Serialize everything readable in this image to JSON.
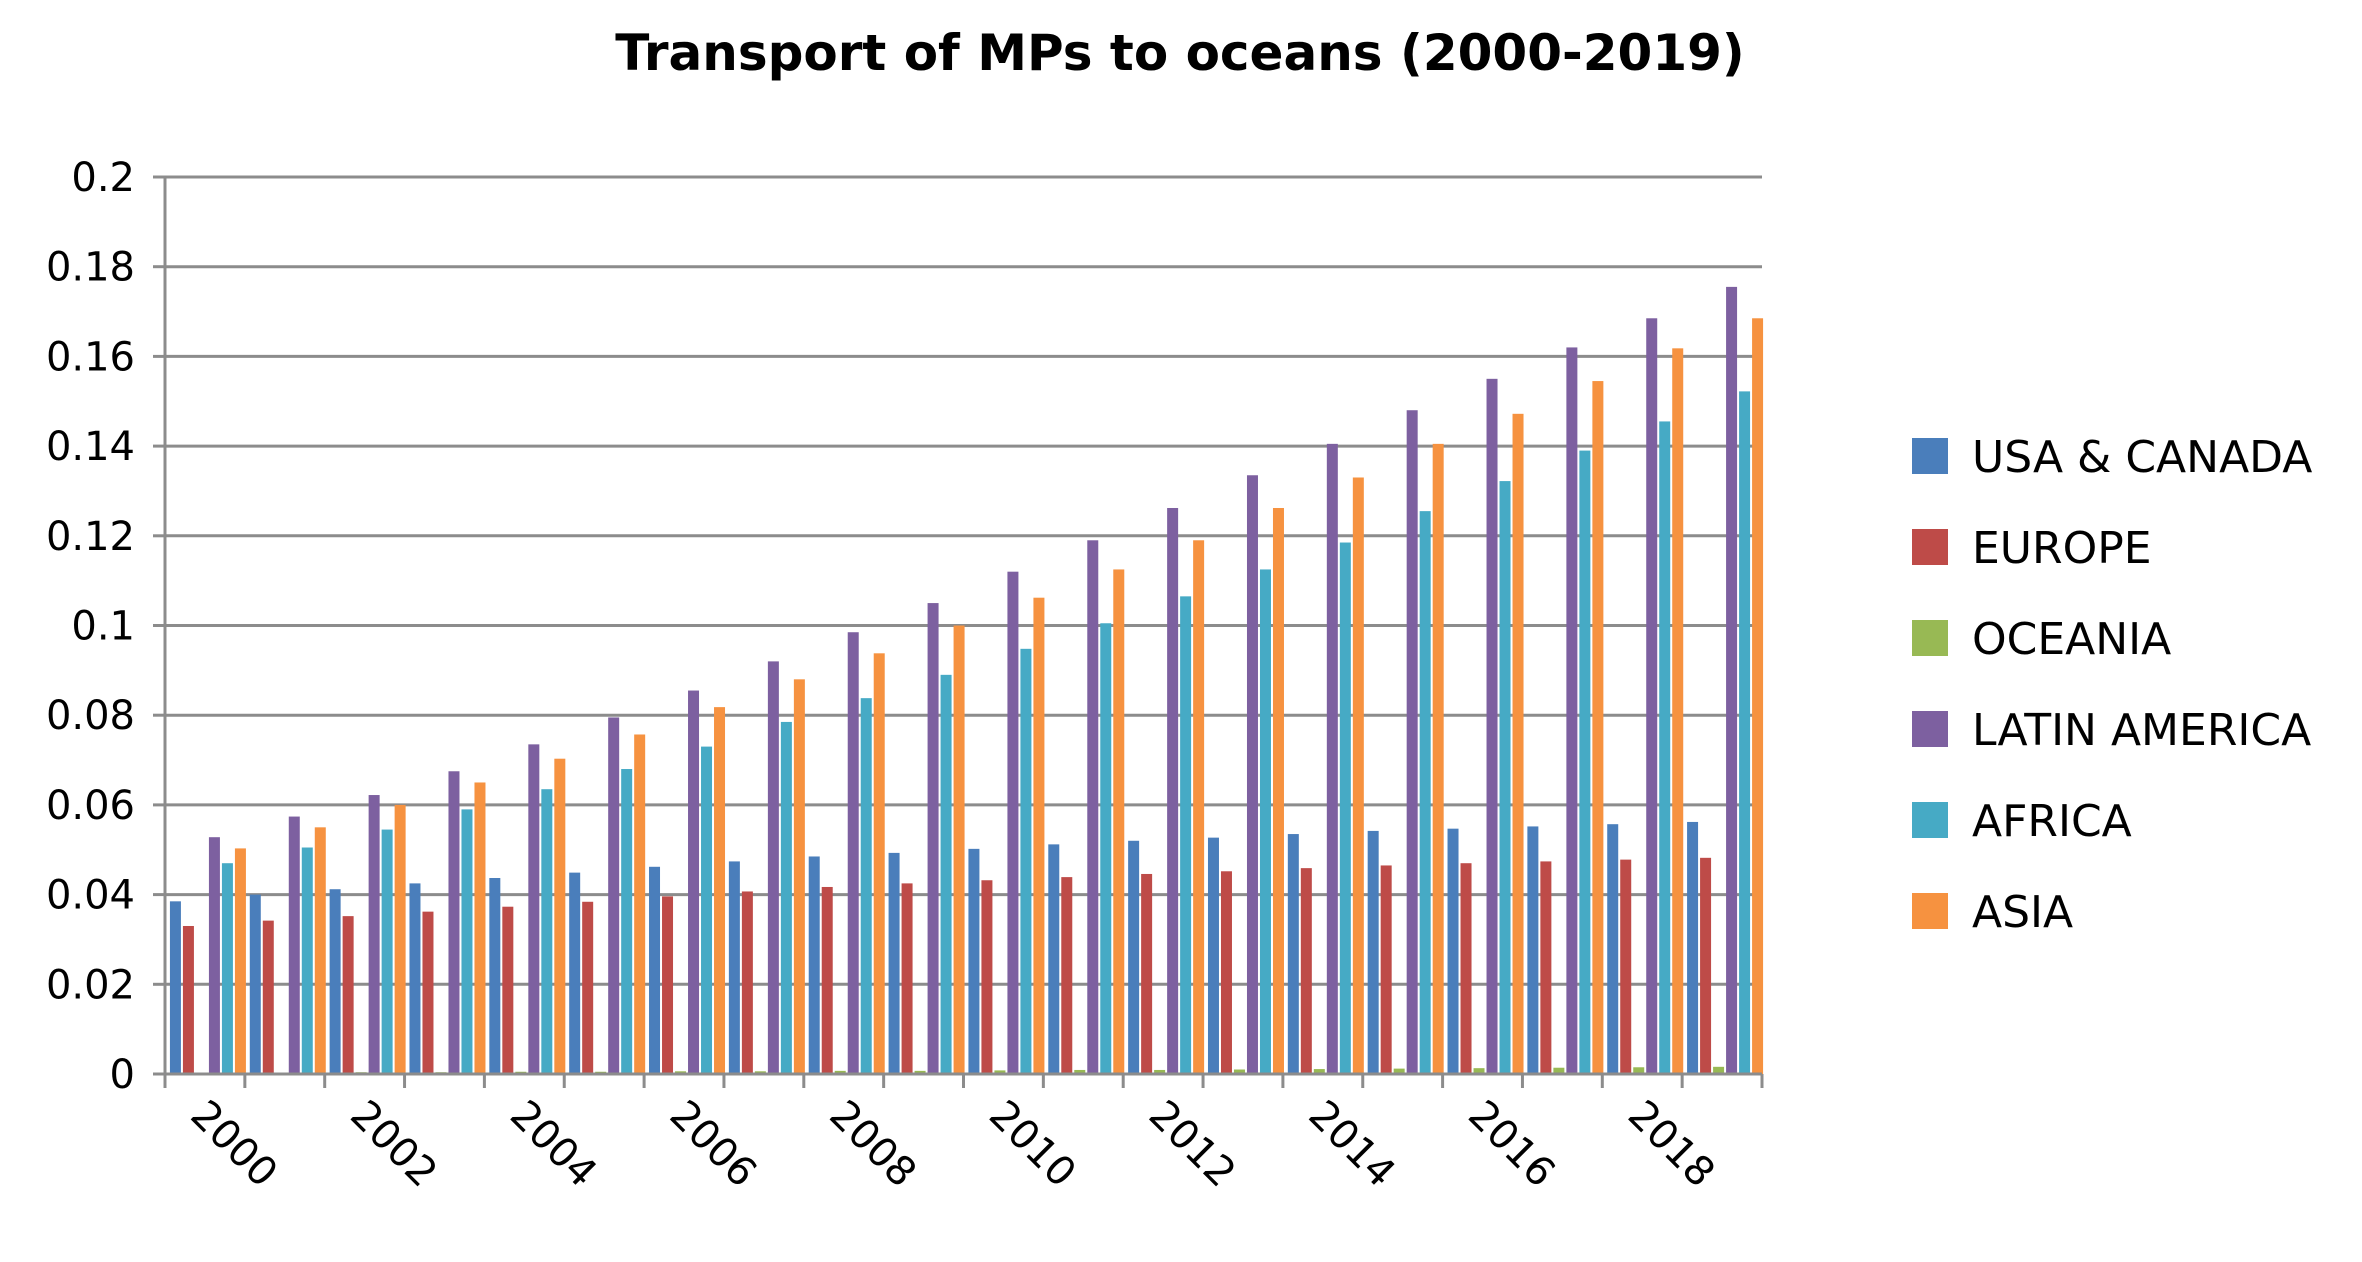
{
  "chart_data": {
    "type": "bar",
    "title": "Transport of MPs to oceans (2000-2019)",
    "xlabel": "",
    "ylabel": "",
    "ylim": [
      0,
      0.2
    ],
    "yticks": [
      "0",
      "0.02",
      "0.04",
      "0.06",
      "0.08",
      "0.1",
      "0.12",
      "0.14",
      "0.16",
      "0.18",
      "0.2"
    ],
    "categories": [
      "2000",
      "2001",
      "2002",
      "2003",
      "2004",
      "2005",
      "2006",
      "2007",
      "2008",
      "2009",
      "2010",
      "2011",
      "2012",
      "2013",
      "2014",
      "2015",
      "2016",
      "2017",
      "2018",
      "2019"
    ],
    "xtick_labels": [
      "2000",
      "",
      "2002",
      "",
      "2004",
      "",
      "2006",
      "",
      "2008",
      "",
      "2010",
      "",
      "2012",
      "",
      "2014",
      "",
      "2016",
      "",
      "2018",
      ""
    ],
    "grid": "horizontal",
    "legend_position": "right",
    "series": [
      {
        "name": "USA & CANADA",
        "color": "#4A7EBB",
        "values": [
          0.0385,
          0.04,
          0.0412,
          0.0425,
          0.0437,
          0.0449,
          0.0462,
          0.0474,
          0.0485,
          0.0493,
          0.0502,
          0.0512,
          0.052,
          0.0527,
          0.0535,
          0.0542,
          0.0547,
          0.0552,
          0.0557,
          0.0562
        ]
      },
      {
        "name": "EUROPE",
        "color": "#BE4B48",
        "values": [
          0.033,
          0.0342,
          0.0352,
          0.0362,
          0.0373,
          0.0384,
          0.0396,
          0.0407,
          0.0417,
          0.0425,
          0.0432,
          0.0439,
          0.0446,
          0.0452,
          0.0459,
          0.0465,
          0.047,
          0.0474,
          0.0478,
          0.0482
        ]
      },
      {
        "name": "OCEANIA",
        "color": "#98B954",
        "values": [
          0.0003,
          0.0003,
          0.0004,
          0.0004,
          0.0005,
          0.0005,
          0.0006,
          0.0006,
          0.0007,
          0.0007,
          0.0008,
          0.0009,
          0.0009,
          0.001,
          0.0011,
          0.0012,
          0.0013,
          0.0014,
          0.0015,
          0.0016
        ]
      },
      {
        "name": "LATIN AMERICA",
        "color": "#7D60A0",
        "values": [
          0.0528,
          0.0574,
          0.0622,
          0.0675,
          0.0735,
          0.0795,
          0.0855,
          0.092,
          0.0985,
          0.105,
          0.112,
          0.119,
          0.1262,
          0.1335,
          0.1405,
          0.148,
          0.155,
          0.162,
          0.1685,
          0.1755
        ]
      },
      {
        "name": "AFRICA",
        "color": "#46AAC5",
        "values": [
          0.047,
          0.0505,
          0.0545,
          0.059,
          0.0635,
          0.068,
          0.073,
          0.0785,
          0.0838,
          0.089,
          0.0948,
          0.1005,
          0.1065,
          0.1125,
          0.1185,
          0.1255,
          0.1322,
          0.139,
          0.1455,
          0.1522
        ]
      },
      {
        "name": "ASIA",
        "color": "#F69240",
        "values": [
          0.0503,
          0.055,
          0.06,
          0.065,
          0.0703,
          0.0757,
          0.0818,
          0.088,
          0.0938,
          0.1,
          0.1062,
          0.1125,
          0.119,
          0.1262,
          0.133,
          0.1405,
          0.1472,
          0.1545,
          0.1618,
          0.1685
        ]
      }
    ]
  }
}
